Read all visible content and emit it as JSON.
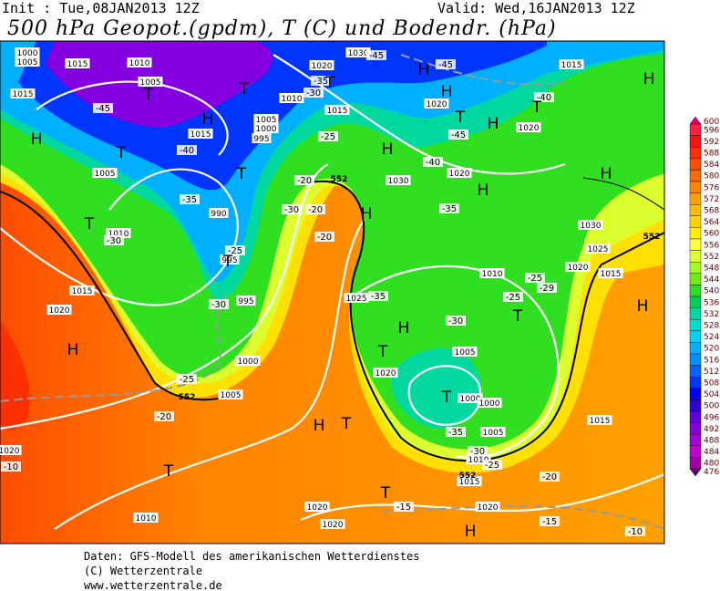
{
  "header": {
    "init": "Init : Tue,08JAN2013 12Z",
    "valid": "Valid: Wed,16JAN2013 12Z",
    "title": "500 hPa Geopot.(gpdm), T (C) und Bodendr. (hPa)"
  },
  "footer": [
    "Daten: GFS-Modell des amerikanischen Wetterdienstes",
    "(C) Wetterzentrale",
    "www.wetterzentrale.de"
  ],
  "colorbar": {
    "levels": [
      600,
      596,
      592,
      588,
      584,
      580,
      576,
      572,
      568,
      564,
      560,
      556,
      552,
      548,
      544,
      540,
      536,
      532,
      528,
      524,
      520,
      516,
      512,
      508,
      504,
      500,
      496,
      492,
      488,
      484,
      480,
      476
    ],
    "colors": [
      "#e0007a",
      "#ff2040",
      "#ff1010",
      "#ff3000",
      "#ff4c00",
      "#ff6a00",
      "#ff8400",
      "#ffa000",
      "#ffbc00",
      "#ffd400",
      "#ffee00",
      "#ffff40",
      "#ddff30",
      "#a8f820",
      "#70ec10",
      "#30e020",
      "#00d060",
      "#00d8a0",
      "#00e0d0",
      "#00d0ff",
      "#00b0ff",
      "#0090ff",
      "#0064ff",
      "#0034ff",
      "#0000f0",
      "#3000e0",
      "#6000e0",
      "#8400e0",
      "#a400e0",
      "#c000d0",
      "#a000a8",
      "#600070"
    ]
  },
  "map_labels": [
    "1000",
    "1005",
    "1015",
    "1015",
    "1010",
    "1005",
    "1015",
    "1005",
    "1000",
    "995",
    "990",
    "995",
    "995",
    "1005",
    "1010",
    "1015",
    "1020",
    "1000",
    "1005",
    "1020",
    "1030",
    "1010",
    "1015",
    "1030",
    "1020",
    "1020",
    "1020",
    "1015",
    "1030",
    "1025",
    "1020",
    "1015",
    "1010",
    "1025",
    "1020",
    "1005",
    "1000",
    "1000",
    "1005",
    "1010",
    "1015",
    "1015",
    "1020",
    "1020",
    "1020",
    "1010",
    "1020",
    "-45",
    "-40",
    "-35",
    "-30",
    "-25",
    "-30",
    "-25",
    "-20",
    "-10",
    "-35",
    "-30",
    "-25",
    "-20",
    "-30",
    "-20",
    "-20",
    "-45",
    "-45",
    "-40",
    "-45",
    "-40",
    "-35",
    "-35",
    "-30",
    "-25",
    "-25",
    "-29",
    "-35",
    "-30",
    "-25",
    "-20",
    "-15",
    "-15",
    "-10",
    "H",
    "H",
    "T",
    "T",
    "H",
    "T",
    "T",
    "T",
    "T",
    "H",
    "T",
    "T",
    "H",
    "H",
    "T",
    "H",
    "T",
    "H",
    "H",
    "H",
    "H",
    "H",
    "H",
    "T",
    "T",
    "H",
    "T",
    "T",
    "H",
    "T",
    "552",
    "552",
    "552",
    "552"
  ]
}
